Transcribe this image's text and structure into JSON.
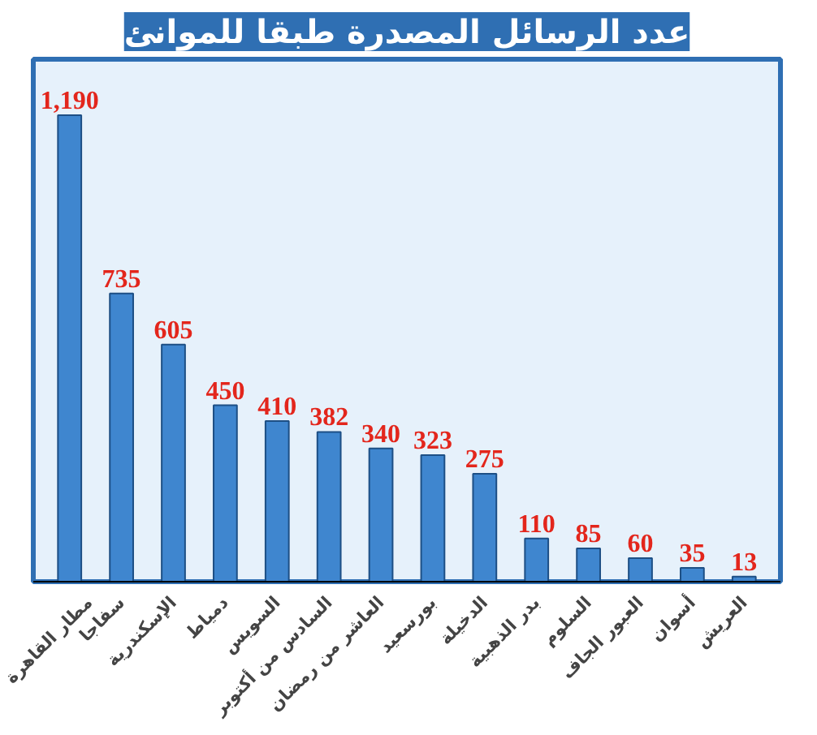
{
  "chart_data": {
    "type": "bar",
    "title": "عدد الرسائل المصدرة طبقا للموانئ",
    "categories": [
      "مطار القاهرة",
      "سفاجا",
      "الإسكندرية",
      "دمياط",
      "السويس",
      "السادس من أكتوبر",
      "العاشر من رمضان",
      "بورسعيد",
      "الدخيلة",
      "بدر الذهبية",
      "السلوم",
      "العبور الجاف",
      "أسوان",
      "العريش"
    ],
    "values": [
      1190,
      735,
      605,
      450,
      410,
      382,
      340,
      323,
      275,
      110,
      85,
      60,
      35,
      13
    ],
    "value_labels": [
      "1,190",
      "735",
      "605",
      "450",
      "410",
      "382",
      "340",
      "323",
      "275",
      "110",
      "85",
      "60",
      "35",
      "13"
    ],
    "color": "#3f86cf",
    "grid": false
  }
}
